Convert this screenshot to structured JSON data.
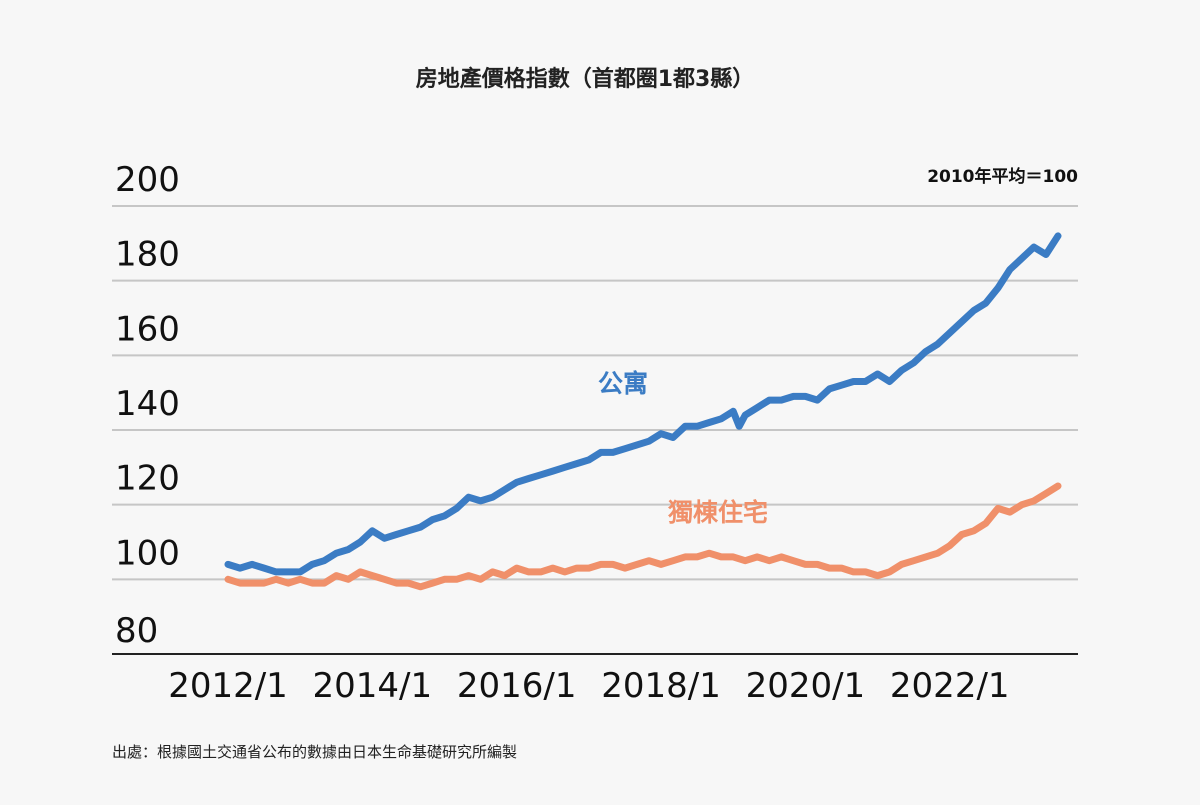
{
  "chart_data": {
    "type": "line",
    "title": "房地產價格指數（首都圈1都3縣）",
    "note": "2010年平均＝100",
    "source": "出處：根據國土交通省公布的數據由日本生命基礎研究所編製",
    "ylim": [
      80,
      200
    ],
    "yticks": [
      80,
      100,
      120,
      140,
      160,
      180,
      200
    ],
    "xlim": [
      "2012/1",
      "2023/7"
    ],
    "xticks": [
      "2012/1",
      "2014/1",
      "2016/1",
      "2018/1",
      "2020/1",
      "2022/1"
    ],
    "grid": true,
    "series": [
      {
        "name": "公寓",
        "color": "#3b7cc4",
        "points": [
          [
            "2012/1",
            104
          ],
          [
            "2012/3",
            103
          ],
          [
            "2012/5",
            104
          ],
          [
            "2012/7",
            103
          ],
          [
            "2012/9",
            102
          ],
          [
            "2012/11",
            102
          ],
          [
            "2013/1",
            102
          ],
          [
            "2013/3",
            104
          ],
          [
            "2013/5",
            105
          ],
          [
            "2013/7",
            107
          ],
          [
            "2013/9",
            108
          ],
          [
            "2013/11",
            110
          ],
          [
            "2014/1",
            113
          ],
          [
            "2014/3",
            111
          ],
          [
            "2014/5",
            112
          ],
          [
            "2014/7",
            113
          ],
          [
            "2014/9",
            114
          ],
          [
            "2014/11",
            116
          ],
          [
            "2015/1",
            117
          ],
          [
            "2015/3",
            119
          ],
          [
            "2015/5",
            122
          ],
          [
            "2015/7",
            121
          ],
          [
            "2015/9",
            122
          ],
          [
            "2015/11",
            124
          ],
          [
            "2016/1",
            126
          ],
          [
            "2016/3",
            127
          ],
          [
            "2016/5",
            128
          ],
          [
            "2016/7",
            129
          ],
          [
            "2016/9",
            130
          ],
          [
            "2016/11",
            131
          ],
          [
            "2017/1",
            132
          ],
          [
            "2017/3",
            134
          ],
          [
            "2017/5",
            134
          ],
          [
            "2017/7",
            135
          ],
          [
            "2017/9",
            136
          ],
          [
            "2017/11",
            137
          ],
          [
            "2018/1",
            139
          ],
          [
            "2018/3",
            138
          ],
          [
            "2018/5",
            141
          ],
          [
            "2018/7",
            141
          ],
          [
            "2018/9",
            142
          ],
          [
            "2018/11",
            143
          ],
          [
            "2019/1",
            145
          ],
          [
            "2019/2",
            141
          ],
          [
            "2019/3",
            144
          ],
          [
            "2019/5",
            146
          ],
          [
            "2019/7",
            148
          ],
          [
            "2019/9",
            148
          ],
          [
            "2019/11",
            149
          ],
          [
            "2020/1",
            149
          ],
          [
            "2020/3",
            148
          ],
          [
            "2020/5",
            151
          ],
          [
            "2020/7",
            152
          ],
          [
            "2020/9",
            153
          ],
          [
            "2020/11",
            153
          ],
          [
            "2021/1",
            155
          ],
          [
            "2021/3",
            153
          ],
          [
            "2021/5",
            156
          ],
          [
            "2021/7",
            158
          ],
          [
            "2021/9",
            161
          ],
          [
            "2021/11",
            163
          ],
          [
            "2022/1",
            166
          ],
          [
            "2022/3",
            169
          ],
          [
            "2022/5",
            172
          ],
          [
            "2022/7",
            174
          ],
          [
            "2022/9",
            178
          ],
          [
            "2022/11",
            183
          ],
          [
            "2023/1",
            186
          ],
          [
            "2023/3",
            189
          ],
          [
            "2023/5",
            187
          ],
          [
            "2023/7",
            192
          ]
        ]
      },
      {
        "name": "獨棟住宅",
        "color": "#f0906a",
        "points": [
          [
            "2012/1",
            100
          ],
          [
            "2012/3",
            99
          ],
          [
            "2012/5",
            99
          ],
          [
            "2012/7",
            99
          ],
          [
            "2012/9",
            100
          ],
          [
            "2012/11",
            99
          ],
          [
            "2013/1",
            100
          ],
          [
            "2013/3",
            99
          ],
          [
            "2013/5",
            99
          ],
          [
            "2013/7",
            101
          ],
          [
            "2013/9",
            100
          ],
          [
            "2013/11",
            102
          ],
          [
            "2014/1",
            101
          ],
          [
            "2014/3",
            100
          ],
          [
            "2014/5",
            99
          ],
          [
            "2014/7",
            99
          ],
          [
            "2014/9",
            98
          ],
          [
            "2014/11",
            99
          ],
          [
            "2015/1",
            100
          ],
          [
            "2015/3",
            100
          ],
          [
            "2015/5",
            101
          ],
          [
            "2015/7",
            100
          ],
          [
            "2015/9",
            102
          ],
          [
            "2015/11",
            101
          ],
          [
            "2016/1",
            103
          ],
          [
            "2016/3",
            102
          ],
          [
            "2016/5",
            102
          ],
          [
            "2016/7",
            103
          ],
          [
            "2016/9",
            102
          ],
          [
            "2016/11",
            103
          ],
          [
            "2017/1",
            103
          ],
          [
            "2017/3",
            104
          ],
          [
            "2017/5",
            104
          ],
          [
            "2017/7",
            103
          ],
          [
            "2017/9",
            104
          ],
          [
            "2017/11",
            105
          ],
          [
            "2018/1",
            104
          ],
          [
            "2018/3",
            105
          ],
          [
            "2018/5",
            106
          ],
          [
            "2018/7",
            106
          ],
          [
            "2018/9",
            107
          ],
          [
            "2018/11",
            106
          ],
          [
            "2019/1",
            106
          ],
          [
            "2019/3",
            105
          ],
          [
            "2019/5",
            106
          ],
          [
            "2019/7",
            105
          ],
          [
            "2019/9",
            106
          ],
          [
            "2019/11",
            105
          ],
          [
            "2020/1",
            104
          ],
          [
            "2020/3",
            104
          ],
          [
            "2020/5",
            103
          ],
          [
            "2020/7",
            103
          ],
          [
            "2020/9",
            102
          ],
          [
            "2020/11",
            102
          ],
          [
            "2021/1",
            101
          ],
          [
            "2021/3",
            102
          ],
          [
            "2021/5",
            104
          ],
          [
            "2021/7",
            105
          ],
          [
            "2021/9",
            106
          ],
          [
            "2021/11",
            107
          ],
          [
            "2022/1",
            109
          ],
          [
            "2022/3",
            112
          ],
          [
            "2022/5",
            113
          ],
          [
            "2022/7",
            115
          ],
          [
            "2022/9",
            119
          ],
          [
            "2022/11",
            118
          ],
          [
            "2023/1",
            120
          ],
          [
            "2023/3",
            121
          ],
          [
            "2023/5",
            123
          ],
          [
            "2023/7",
            125
          ]
        ]
      }
    ]
  }
}
